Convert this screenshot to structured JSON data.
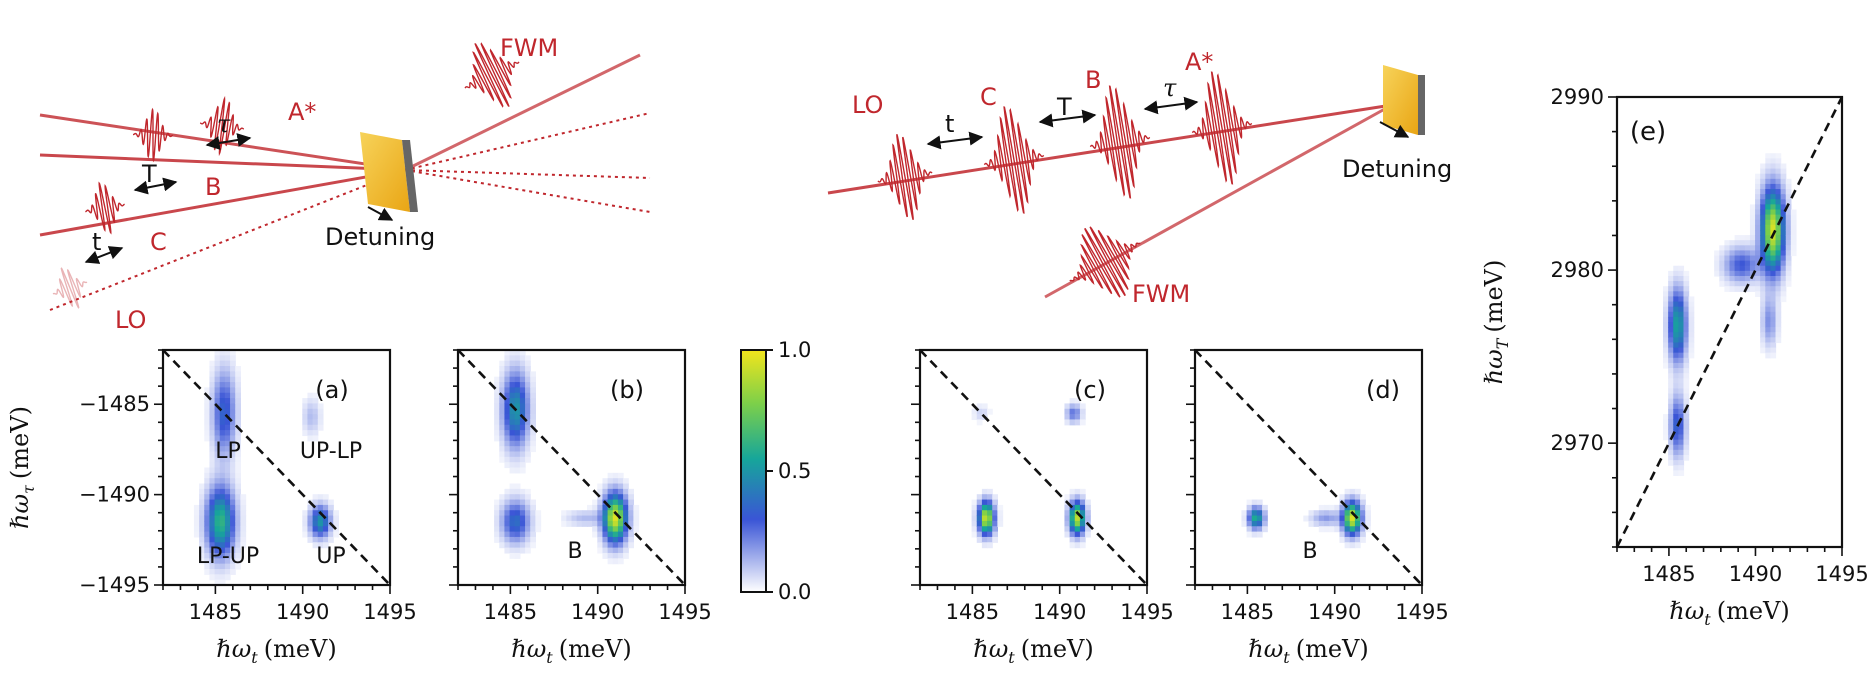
{
  "schematic_left": {
    "pulses": [
      "A*",
      "B",
      "C",
      "LO"
    ],
    "delays": [
      "τ",
      "T",
      "t"
    ],
    "signal": "FWM",
    "sample_label": "Detuning"
  },
  "schematic_right": {
    "pulses": [
      "LO",
      "C",
      "B",
      "A*"
    ],
    "delays": [
      "t",
      "T",
      "τ"
    ],
    "signal": "FWM",
    "sample_label": "Detuning"
  },
  "colorbar": {
    "min_label": "0.0",
    "mid_label": "0.5",
    "max_label": "1.0",
    "colormap": [
      "#ffffff",
      "#3a55d6",
      "#16a69a",
      "#f2e51c"
    ]
  },
  "panels": {
    "a": {
      "label": "(a)",
      "annotations": [
        "LP",
        "UP-LP",
        "LP-UP",
        "UP"
      ]
    },
    "b": {
      "label": "(b)",
      "annotations": [
        "B"
      ]
    },
    "c": {
      "label": "(c)",
      "annotations": []
    },
    "d": {
      "label": "(d)",
      "annotations": [
        "B"
      ]
    },
    "e": {
      "label": "(e)",
      "annotations": []
    }
  },
  "axes_small": {
    "xticks": [
      "1485",
      "1490",
      "1495"
    ],
    "yticks": [
      "−1485",
      "−1490",
      "−1495"
    ],
    "xlabel_sym": "ℏω",
    "xlabel_sub": "t",
    "xlabel_unit": "(meV)",
    "ylabel_sym": "ℏω",
    "ylabel_sub": "τ",
    "ylabel_unit": "(meV)"
  },
  "axes_e": {
    "xticks": [
      "1485",
      "1490",
      "1495"
    ],
    "yticks": [
      "2990",
      "2980",
      "2970"
    ],
    "xlabel_sym": "ℏω",
    "xlabel_sub": "t",
    "xlabel_unit": "(meV)",
    "ylabel_sym": "ℏω",
    "ylabel_sub": "T",
    "ylabel_unit": "(meV)"
  },
  "chart_data": [
    {
      "type": "heatmap",
      "title": "(a)",
      "xlim": [
        1482,
        1495
      ],
      "ylim": [
        -1495,
        -1482
      ],
      "peaks": [
        {
          "x": 1485.3,
          "y": -1491.5,
          "amp": 0.62,
          "sx": 0.55,
          "sy": 1.3
        },
        {
          "x": 1485.5,
          "y": -1485.5,
          "amp": 0.35,
          "sx": 0.45,
          "sy": 1.6
        },
        {
          "x": 1491.0,
          "y": -1491.5,
          "amp": 0.5,
          "sx": 0.4,
          "sy": 0.6
        },
        {
          "x": 1490.5,
          "y": -1485.7,
          "amp": 0.12,
          "sx": 0.35,
          "sy": 0.7
        }
      ]
    },
    {
      "type": "heatmap",
      "title": "(b)",
      "xlim": [
        1482,
        1495
      ],
      "ylim": [
        -1495,
        -1482
      ],
      "peaks": [
        {
          "x": 1485.3,
          "y": -1485.3,
          "amp": 0.5,
          "sx": 0.5,
          "sy": 1.4
        },
        {
          "x": 1485.3,
          "y": -1491.5,
          "amp": 0.38,
          "sx": 0.55,
          "sy": 0.8
        },
        {
          "x": 1491.0,
          "y": -1491.3,
          "amp": 0.95,
          "sx": 0.45,
          "sy": 0.9
        },
        {
          "x": 1489.3,
          "y": -1491.3,
          "amp": 0.12,
          "sx": 0.8,
          "sy": 0.3
        }
      ]
    },
    {
      "type": "heatmap",
      "title": "(c)",
      "xlim": [
        1482,
        1495
      ],
      "ylim": [
        -1495,
        -1482
      ],
      "peaks": [
        {
          "x": 1485.8,
          "y": -1491.3,
          "amp": 0.95,
          "sx": 0.3,
          "sy": 0.6
        },
        {
          "x": 1491.0,
          "y": -1491.3,
          "amp": 0.9,
          "sx": 0.3,
          "sy": 0.6
        },
        {
          "x": 1490.8,
          "y": -1485.5,
          "amp": 0.25,
          "sx": 0.3,
          "sy": 0.35
        },
        {
          "x": 1485.5,
          "y": -1485.5,
          "amp": 0.08,
          "sx": 0.3,
          "sy": 0.3
        }
      ]
    },
    {
      "type": "heatmap",
      "title": "(d)",
      "xlim": [
        1482,
        1495
      ],
      "ylim": [
        -1495,
        -1482
      ],
      "peaks": [
        {
          "x": 1485.5,
          "y": -1491.3,
          "amp": 0.6,
          "sx": 0.3,
          "sy": 0.4
        },
        {
          "x": 1491.0,
          "y": -1491.3,
          "amp": 0.95,
          "sx": 0.35,
          "sy": 0.6
        },
        {
          "x": 1489.5,
          "y": -1491.3,
          "amp": 0.18,
          "sx": 0.6,
          "sy": 0.3
        }
      ]
    },
    {
      "type": "heatmap",
      "title": "(e)",
      "xlim": [
        1482,
        1495
      ],
      "ylim": [
        2964,
        2990
      ],
      "peaks": [
        {
          "x": 1491.0,
          "y": 2982.3,
          "amp": 0.95,
          "sx": 0.45,
          "sy": 1.6
        },
        {
          "x": 1485.5,
          "y": 2976.8,
          "amp": 0.55,
          "sx": 0.35,
          "sy": 1.4
        },
        {
          "x": 1485.5,
          "y": 2971.0,
          "amp": 0.35,
          "sx": 0.3,
          "sy": 1.2
        },
        {
          "x": 1489.2,
          "y": 2980.3,
          "amp": 0.3,
          "sx": 0.7,
          "sy": 0.7
        },
        {
          "x": 1490.8,
          "y": 2977.0,
          "amp": 0.2,
          "sx": 0.3,
          "sy": 1.0
        }
      ]
    }
  ]
}
